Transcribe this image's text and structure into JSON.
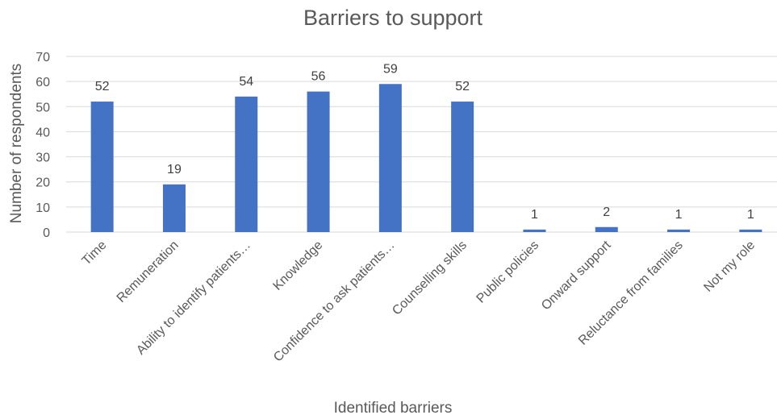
{
  "chart_data": {
    "type": "bar",
    "title": "Barriers to support",
    "xlabel": "Identified barriers",
    "ylabel": "Number of respondents",
    "categories": [
      "Time",
      "Remuneration",
      "Ability to identify patients…",
      "Knowledge",
      "Confidence to ask patients…",
      "Counselling skills",
      "Public policies",
      "Onward support",
      "Reluctance from families",
      "Not my role"
    ],
    "values": [
      52,
      19,
      54,
      56,
      59,
      52,
      1,
      2,
      1,
      1
    ],
    "data_labels": [
      "52",
      "19",
      "54",
      "56",
      "59",
      "52",
      "1",
      "2",
      "1",
      "1"
    ],
    "yticks": [
      "0",
      "10",
      "20",
      "30",
      "40",
      "50",
      "60",
      "70"
    ],
    "ylim": [
      0,
      70
    ],
    "grid": true,
    "legend": false,
    "colors": {
      "bar": "#4472C4",
      "grid": "#D9D9D9",
      "text": "#595959",
      "label": "#404040"
    }
  }
}
